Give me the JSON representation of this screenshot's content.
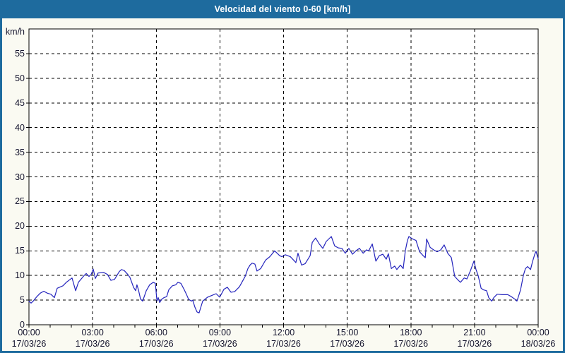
{
  "window": {
    "title": "Velocidad del viento 0-60 [km/h]"
  },
  "colors": {
    "frame": "#1e6b9e",
    "page_background": "#fafaf2",
    "plot_background": "#ffffff",
    "series_line": "#2525bd",
    "grid_line": "#000000",
    "axis_text": "#14142d",
    "title_text": "#ffffff"
  },
  "chart_data": {
    "type": "line",
    "title": "Velocidad del viento 0-60 [km/h]",
    "xlabel": "",
    "ylabel": "km/h",
    "ylim": [
      0,
      60
    ],
    "yticks": [
      0,
      5,
      10,
      15,
      20,
      25,
      30,
      35,
      40,
      45,
      50,
      55
    ],
    "xlim_hours": [
      0,
      24
    ],
    "minor_xtick_hours": 1,
    "grid": "dashed",
    "legend_position": "none",
    "xticks": [
      {
        "hour": 0,
        "time": "00:00",
        "date": "17/03/26"
      },
      {
        "hour": 3,
        "time": "03:00",
        "date": "17/03/26"
      },
      {
        "hour": 6,
        "time": "06:00",
        "date": "17/03/26"
      },
      {
        "hour": 9,
        "time": "09:00",
        "date": "17/03/26"
      },
      {
        "hour": 12,
        "time": "12:00",
        "date": "17/03/26"
      },
      {
        "hour": 15,
        "time": "15:00",
        "date": "17/03/26"
      },
      {
        "hour": 18,
        "time": "18:00",
        "date": "17/03/26"
      },
      {
        "hour": 21,
        "time": "21:00",
        "date": "17/03/26"
      },
      {
        "hour": 24,
        "time": "00:00",
        "date": "18/03/26"
      }
    ],
    "series": [
      {
        "name": "Velocidad del viento",
        "units": "km/h",
        "points_hour_value": [
          [
            0.0,
            4.8
          ],
          [
            0.1,
            4.4
          ],
          [
            0.2,
            4.8
          ],
          [
            0.37,
            5.7
          ],
          [
            0.53,
            6.4
          ],
          [
            0.7,
            6.8
          ],
          [
            0.87,
            6.4
          ],
          [
            1.03,
            6.2
          ],
          [
            1.2,
            5.5
          ],
          [
            1.33,
            7.4
          ],
          [
            1.6,
            7.9
          ],
          [
            1.76,
            8.6
          ],
          [
            2.03,
            9.5
          ],
          [
            2.2,
            6.9
          ],
          [
            2.33,
            8.6
          ],
          [
            2.6,
            10.0
          ],
          [
            2.7,
            10.4
          ],
          [
            2.83,
            9.8
          ],
          [
            2.93,
            10.2
          ],
          [
            3.03,
            11.3
          ],
          [
            3.13,
            9.4
          ],
          [
            3.26,
            10.5
          ],
          [
            3.53,
            10.6
          ],
          [
            3.7,
            10.2
          ],
          [
            3.86,
            9.0
          ],
          [
            4.03,
            9.2
          ],
          [
            4.26,
            10.8
          ],
          [
            4.36,
            11.2
          ],
          [
            4.49,
            11.0
          ],
          [
            4.66,
            10.2
          ],
          [
            4.76,
            9.6
          ],
          [
            4.93,
            7.6
          ],
          [
            5.03,
            6.9
          ],
          [
            5.09,
            8.1
          ],
          [
            5.16,
            7.1
          ],
          [
            5.26,
            5.2
          ],
          [
            5.36,
            4.8
          ],
          [
            5.53,
            6.9
          ],
          [
            5.69,
            8.1
          ],
          [
            5.86,
            8.6
          ],
          [
            5.96,
            8.4
          ],
          [
            6.03,
            4.8
          ],
          [
            6.09,
            5.5
          ],
          [
            6.16,
            4.5
          ],
          [
            6.26,
            5.2
          ],
          [
            6.36,
            5.5
          ],
          [
            6.49,
            5.7
          ],
          [
            6.59,
            7.1
          ],
          [
            6.76,
            7.9
          ],
          [
            6.92,
            8.1
          ],
          [
            7.02,
            8.6
          ],
          [
            7.16,
            8.4
          ],
          [
            7.32,
            7.1
          ],
          [
            7.42,
            6.2
          ],
          [
            7.52,
            5.2
          ],
          [
            7.66,
            4.8
          ],
          [
            7.72,
            5.0
          ],
          [
            7.82,
            3.6
          ],
          [
            7.92,
            2.6
          ],
          [
            8.02,
            2.4
          ],
          [
            8.19,
            4.8
          ],
          [
            8.42,
            5.6
          ],
          [
            8.59,
            5.9
          ],
          [
            8.82,
            6.3
          ],
          [
            8.99,
            5.6
          ],
          [
            9.19,
            7.2
          ],
          [
            9.35,
            7.6
          ],
          [
            9.52,
            6.6
          ],
          [
            9.69,
            6.7
          ],
          [
            9.92,
            7.7
          ],
          [
            10.19,
            9.8
          ],
          [
            10.32,
            11.4
          ],
          [
            10.42,
            12.1
          ],
          [
            10.52,
            12.5
          ],
          [
            10.65,
            12.3
          ],
          [
            10.75,
            10.9
          ],
          [
            10.92,
            11.4
          ],
          [
            11.15,
            13.1
          ],
          [
            11.35,
            13.8
          ],
          [
            11.58,
            15.0
          ],
          [
            11.82,
            14.0
          ],
          [
            11.92,
            13.8
          ],
          [
            12.08,
            14.2
          ],
          [
            12.32,
            13.8
          ],
          [
            12.52,
            12.9
          ],
          [
            12.58,
            12.6
          ],
          [
            12.68,
            14.5
          ],
          [
            12.85,
            12.1
          ],
          [
            13.02,
            12.4
          ],
          [
            13.25,
            14.0
          ],
          [
            13.35,
            16.7
          ],
          [
            13.51,
            17.6
          ],
          [
            13.68,
            16.4
          ],
          [
            13.85,
            15.5
          ],
          [
            14.01,
            16.9
          ],
          [
            14.25,
            17.9
          ],
          [
            14.41,
            16.0
          ],
          [
            14.58,
            15.6
          ],
          [
            14.75,
            15.5
          ],
          [
            14.91,
            14.5
          ],
          [
            15.08,
            15.5
          ],
          [
            15.25,
            14.3
          ],
          [
            15.41,
            15.0
          ],
          [
            15.58,
            15.5
          ],
          [
            15.75,
            14.5
          ],
          [
            15.91,
            15.2
          ],
          [
            16.01,
            15.0
          ],
          [
            16.18,
            16.4
          ],
          [
            16.35,
            12.9
          ],
          [
            16.51,
            14.0
          ],
          [
            16.68,
            14.3
          ],
          [
            16.84,
            13.3
          ],
          [
            16.94,
            14.4
          ],
          [
            17.08,
            11.4
          ],
          [
            17.24,
            11.9
          ],
          [
            17.34,
            11.2
          ],
          [
            17.51,
            12.1
          ],
          [
            17.64,
            11.4
          ],
          [
            17.74,
            15.0
          ],
          [
            17.84,
            17.1
          ],
          [
            17.91,
            17.9
          ],
          [
            18.08,
            17.4
          ],
          [
            18.24,
            17.1
          ],
          [
            18.41,
            14.8
          ],
          [
            18.58,
            14.0
          ],
          [
            18.68,
            13.6
          ],
          [
            18.74,
            17.4
          ],
          [
            18.91,
            15.7
          ],
          [
            19.07,
            15.2
          ],
          [
            19.24,
            14.8
          ],
          [
            19.41,
            15.2
          ],
          [
            19.57,
            16.2
          ],
          [
            19.74,
            14.5
          ],
          [
            19.91,
            13.6
          ],
          [
            20.07,
            9.8
          ],
          [
            20.24,
            9.0
          ],
          [
            20.34,
            8.6
          ],
          [
            20.51,
            9.5
          ],
          [
            20.64,
            9.3
          ],
          [
            20.81,
            11.0
          ],
          [
            20.97,
            12.9
          ],
          [
            21.07,
            11.2
          ],
          [
            21.17,
            10.0
          ],
          [
            21.31,
            7.4
          ],
          [
            21.41,
            7.1
          ],
          [
            21.57,
            6.9
          ],
          [
            21.67,
            5.5
          ],
          [
            21.81,
            4.8
          ],
          [
            21.91,
            5.5
          ],
          [
            22.07,
            6.2
          ],
          [
            22.3,
            6.1
          ],
          [
            22.57,
            6.1
          ],
          [
            22.74,
            5.7
          ],
          [
            22.9,
            5.2
          ],
          [
            23.0,
            4.8
          ],
          [
            23.17,
            7.1
          ],
          [
            23.3,
            10.0
          ],
          [
            23.4,
            11.4
          ],
          [
            23.5,
            11.8
          ],
          [
            23.64,
            11.2
          ],
          [
            23.74,
            12.9
          ],
          [
            23.84,
            14.3
          ],
          [
            23.9,
            14.9
          ],
          [
            24.0,
            13.4
          ]
        ]
      }
    ]
  }
}
